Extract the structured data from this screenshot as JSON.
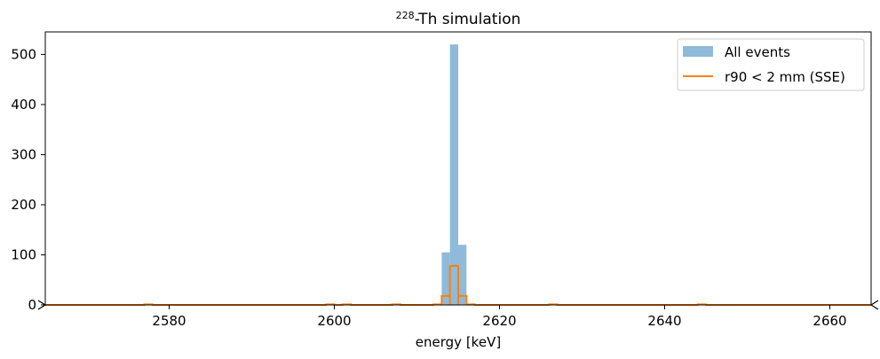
{
  "chart_data": {
    "type": "bar",
    "title_sup": "228",
    "title_main": "-Th simulation",
    "xlabel": "energy [keV]",
    "ylabel": "",
    "xlim": [
      2565,
      2665
    ],
    "ylim": [
      0,
      545
    ],
    "xticks": [
      2580,
      2600,
      2620,
      2640,
      2660
    ],
    "yticks": [
      0,
      100,
      200,
      300,
      400,
      500
    ],
    "bin_width": 1,
    "grid": false,
    "legend_position": "top-right",
    "series": [
      {
        "name": "All events",
        "style": "bar",
        "color": "#8fbad9",
        "bins": [
          {
            "x0": 2613,
            "x1": 2614,
            "value": 105
          },
          {
            "x0": 2614,
            "x1": 2615,
            "value": 520
          },
          {
            "x0": 2615,
            "x1": 2616,
            "value": 120
          }
        ]
      },
      {
        "name": "r90 < 2 mm (SSE)",
        "style": "step",
        "color": "#ff7f0e",
        "bins": [
          {
            "x0": 2577,
            "x1": 2578,
            "value": 1
          },
          {
            "x0": 2599,
            "x1": 2600,
            "value": 1
          },
          {
            "x0": 2601,
            "x1": 2602,
            "value": 1
          },
          {
            "x0": 2607,
            "x1": 2608,
            "value": 1
          },
          {
            "x0": 2612,
            "x1": 2613,
            "value": 1
          },
          {
            "x0": 2613,
            "x1": 2614,
            "value": 18
          },
          {
            "x0": 2614,
            "x1": 2615,
            "value": 78
          },
          {
            "x0": 2615,
            "x1": 2616,
            "value": 18
          },
          {
            "x0": 2616,
            "x1": 2617,
            "value": 1
          },
          {
            "x0": 2626,
            "x1": 2627,
            "value": 1
          },
          {
            "x0": 2644,
            "x1": 2645,
            "value": 1
          }
        ]
      }
    ]
  }
}
